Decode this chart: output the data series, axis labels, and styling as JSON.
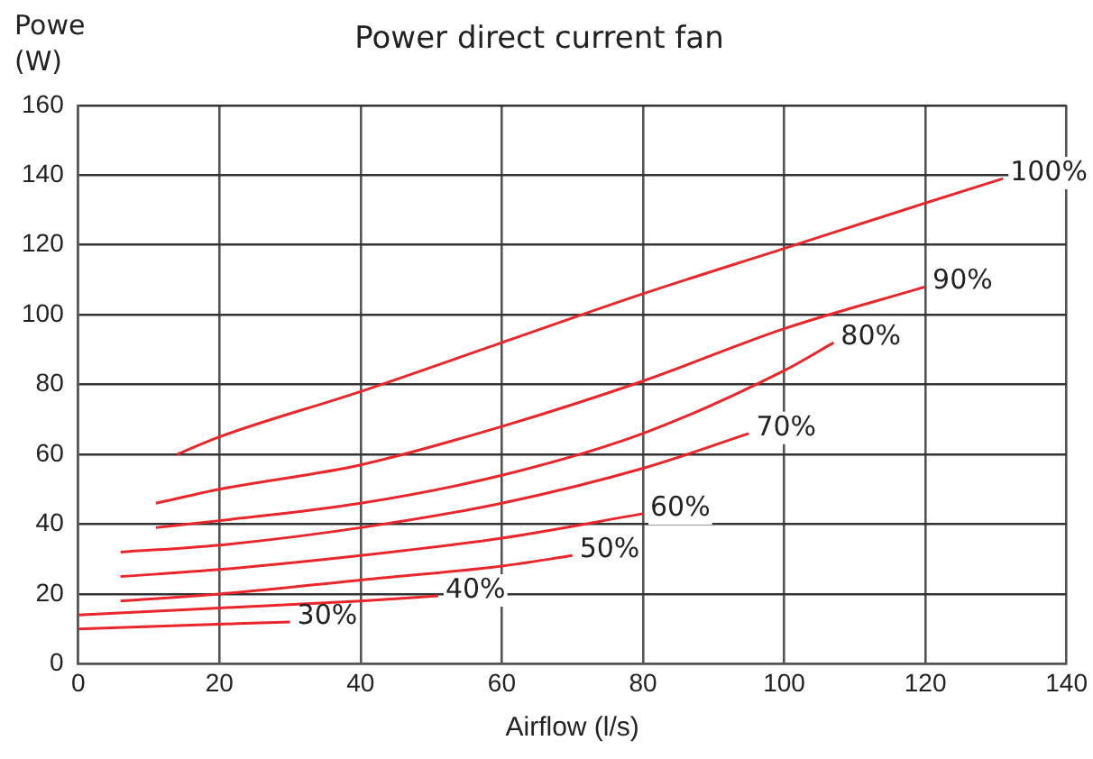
{
  "chart_data": {
    "type": "line",
    "title": "Power direct current fan",
    "xlabel": "Airflow (l/s)",
    "ylabel": "Powe (W)",
    "xlim": [
      0,
      140
    ],
    "xticks": [
      0,
      20,
      40,
      60,
      80,
      100,
      120,
      140
    ],
    "ylim": [
      0,
      160
    ],
    "yticks": [
      0,
      20,
      40,
      60,
      80,
      100,
      120,
      140,
      160
    ],
    "grid": true,
    "legend": false,
    "marker": "none",
    "line_style": "solid",
    "series": [
      {
        "color": "#e8262b",
        "x": [
          14,
          20,
          40,
          60,
          80,
          100,
          120,
          131
        ],
        "values": [
          60,
          65,
          78,
          92,
          106,
          119,
          132,
          139
        ]
      },
      {
        "color": "#e8262b",
        "x": [
          11,
          20,
          40,
          60,
          80,
          100,
          120
        ],
        "values": [
          46,
          50,
          57,
          68,
          81,
          96,
          108
        ]
      },
      {
        "color": "#e8262b",
        "x": [
          11,
          20,
          40,
          60,
          80,
          100,
          107
        ],
        "values": [
          39,
          41,
          46,
          54,
          66,
          84,
          92
        ]
      },
      {
        "color": "#e8262b",
        "x": [
          6,
          20,
          40,
          60,
          80,
          95
        ],
        "values": [
          32,
          34,
          39,
          46,
          56,
          66
        ]
      },
      {
        "color": "#e8262b",
        "x": [
          6,
          20,
          40,
          60,
          80
        ],
        "values": [
          25,
          27,
          31,
          36,
          43
        ]
      },
      {
        "color": "#e8262b",
        "x": [
          6,
          20,
          40,
          60,
          70
        ],
        "values": [
          18,
          20,
          24,
          28,
          31
        ]
      },
      {
        "color": "#e8262b",
        "x": [
          0,
          20,
          40,
          51
        ],
        "values": [
          14,
          16,
          18,
          19.5
        ]
      },
      {
        "color": "#e8262b",
        "x": [
          0,
          15,
          30
        ],
        "values": [
          10,
          11,
          12
        ]
      }
    ],
    "annotations": [
      {
        "text": "100%",
        "x": 131,
        "y": 139
      },
      {
        "text": "90%",
        "x": 120,
        "y": 108
      },
      {
        "text": "80%",
        "x": 107,
        "y": 92
      },
      {
        "text": "70%",
        "x": 95,
        "y": 66
      },
      {
        "text": "60%",
        "x": 80,
        "y": 43
      },
      {
        "text": "50%",
        "x": 70,
        "y": 31
      },
      {
        "text": "40%",
        "x": 51,
        "y": 19.5
      },
      {
        "text": "30%",
        "x": 30,
        "y": 12
      }
    ]
  }
}
